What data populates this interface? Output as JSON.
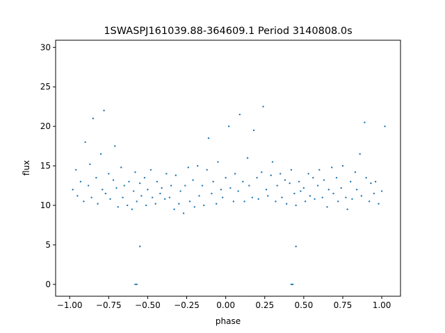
{
  "chart_data": {
    "type": "scatter",
    "title": "1SWASPJ161039.88-364609.1 Period 3140808.0s",
    "xlabel": "phase",
    "ylabel": "flux",
    "xlim": [
      -1.09,
      1.12
    ],
    "ylim": [
      -1.5,
      30.9
    ],
    "xticks": [
      -1.0,
      -0.75,
      -0.5,
      -0.25,
      0.0,
      0.25,
      0.5,
      0.75,
      1.0
    ],
    "xtick_labels": [
      "−1.00",
      "−0.75",
      "−0.50",
      "−0.25",
      "0.00",
      "0.25",
      "0.50",
      "0.75",
      "1.00"
    ],
    "yticks": [
      0,
      5,
      10,
      15,
      20,
      25,
      30
    ],
    "ytick_labels": [
      "0",
      "5",
      "10",
      "15",
      "20",
      "25",
      "30"
    ],
    "grid": false,
    "legend": "none",
    "marker_color": "#1f77b4",
    "series": [
      {
        "x": [
          -0.98,
          -0.96,
          -0.95,
          -0.93,
          -0.91,
          -0.9,
          -0.88,
          -0.87,
          -0.86,
          -0.85,
          -0.83,
          -0.82,
          -0.8,
          -0.79,
          -0.78,
          -0.77,
          -0.75,
          -0.74,
          -0.72,
          -0.71,
          -0.7,
          -0.69,
          -0.67,
          -0.66,
          -0.65,
          -0.63,
          -0.62,
          -0.6,
          -0.59,
          -0.58,
          -0.57,
          -0.55,
          -0.54,
          -0.52,
          -0.51,
          -0.5,
          -0.48,
          -0.47,
          -0.45,
          -0.44,
          -0.42,
          -0.41,
          -0.39,
          -0.38,
          -0.36,
          -0.35,
          -0.33,
          -0.32,
          -0.3,
          -0.29,
          -0.27,
          -0.26,
          -0.24,
          -0.23,
          -0.21,
          -0.2,
          -0.18,
          -0.17,
          -0.15,
          -0.14,
          -0.12,
          -0.11,
          -0.09,
          -0.08,
          -0.06,
          -0.05,
          -0.03,
          -0.02,
          0.0,
          0.02,
          0.03,
          0.05,
          0.06,
          0.08,
          0.09,
          0.11,
          0.12,
          0.14,
          0.15,
          0.17,
          0.18,
          0.2,
          0.21,
          0.23,
          0.24,
          0.26,
          0.27,
          0.29,
          0.3,
          0.32,
          0.33,
          0.35,
          0.36,
          0.38,
          0.39,
          0.41,
          0.42,
          0.44,
          0.45,
          0.47,
          0.48,
          0.5,
          0.51,
          0.53,
          0.54,
          0.56,
          0.57,
          0.59,
          0.6,
          0.62,
          0.63,
          0.65,
          0.66,
          0.68,
          0.69,
          0.71,
          0.72,
          0.74,
          0.75,
          0.77,
          0.78,
          0.8,
          0.81,
          0.83,
          0.84,
          0.86,
          0.87,
          0.89,
          0.9,
          0.92,
          0.93,
          0.95,
          0.96,
          0.98,
          1.0,
          1.02,
          -0.58,
          -0.57,
          0.42,
          0.43,
          -0.55,
          0.45
        ],
        "y": [
          12.0,
          14.5,
          11.2,
          13.0,
          10.5,
          18.0,
          12.5,
          15.2,
          11.0,
          21.0,
          13.5,
          10.2,
          16.5,
          12.0,
          22.0,
          11.5,
          14.0,
          10.8,
          13.2,
          17.5,
          12.2,
          9.8,
          14.8,
          11.0,
          12.5,
          10.0,
          13.0,
          9.5,
          11.8,
          14.2,
          10.5,
          12.8,
          11.2,
          13.5,
          10.0,
          12.0,
          14.5,
          11.0,
          10.2,
          13.0,
          11.5,
          12.2,
          10.8,
          14.0,
          11.0,
          12.5,
          9.5,
          13.8,
          10.2,
          11.8,
          9.0,
          12.5,
          14.8,
          10.5,
          13.2,
          9.8,
          15.0,
          11.2,
          12.5,
          10.0,
          14.5,
          18.5,
          11.5,
          13.0,
          10.2,
          15.5,
          12.0,
          11.0,
          13.5,
          20.0,
          12.2,
          10.5,
          14.0,
          11.8,
          21.5,
          13.0,
          10.5,
          16.0,
          12.5,
          11.0,
          19.5,
          13.5,
          10.8,
          14.2,
          22.5,
          12.0,
          11.2,
          13.8,
          15.5,
          10.5,
          12.5,
          14.0,
          11.0,
          13.2,
          10.2,
          12.8,
          14.5,
          11.5,
          10.0,
          13.0,
          11.8,
          12.2,
          10.5,
          14.0,
          11.2,
          13.5,
          10.8,
          12.5,
          14.5,
          11.0,
          13.2,
          9.8,
          12.0,
          14.8,
          11.5,
          13.5,
          10.5,
          12.2,
          15.0,
          11.0,
          9.5,
          13.0,
          10.8,
          14.2,
          12.0,
          16.5,
          11.2,
          20.5,
          13.5,
          10.5,
          12.8,
          11.5,
          13.0,
          10.2,
          11.8,
          20.0,
          0.0,
          0.0,
          0.0,
          0.0,
          4.8,
          4.8
        ]
      }
    ]
  }
}
